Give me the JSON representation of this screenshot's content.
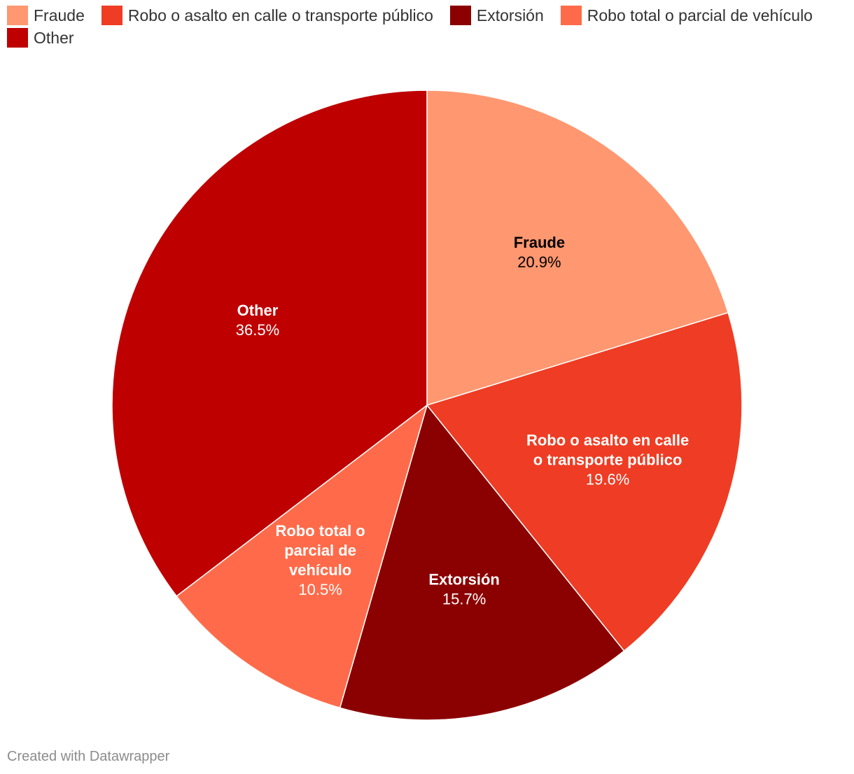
{
  "chart_data": {
    "type": "pie",
    "slices": [
      {
        "label": "Fraude",
        "name_lines": [
          "Fraude"
        ],
        "value": 20.9,
        "value_label": "20.9%",
        "color": "#ff9770",
        "text_color": "#000000"
      },
      {
        "label": "Robo o asalto en calle o transporte público",
        "name_lines": [
          "Robo o asalto en calle",
          "o transporte público"
        ],
        "value": 19.6,
        "value_label": "19.6%",
        "color": "#ee3d24",
        "text_color": "#ffffff"
      },
      {
        "label": "Extorsión",
        "name_lines": [
          "Extorsión"
        ],
        "value": 15.7,
        "value_label": "15.7%",
        "color": "#8b0000",
        "text_color": "#ffffff"
      },
      {
        "label": "Robo total o parcial de vehículo",
        "name_lines": [
          "Robo total o",
          "parcial de",
          "vehículo"
        ],
        "value": 10.5,
        "value_label": "10.5%",
        "color": "#ff6b4a",
        "text_color": "#ffffff"
      },
      {
        "label": "Other",
        "name_lines": [
          "Other"
        ],
        "value": 36.5,
        "value_label": "36.5%",
        "color": "#be0000",
        "text_color": "#ffffff"
      }
    ],
    "legend_position": "top-left",
    "start_angle": "12 o'clock",
    "direction": "clockwise"
  },
  "footer": {
    "credit": "Created with Datawrapper"
  }
}
